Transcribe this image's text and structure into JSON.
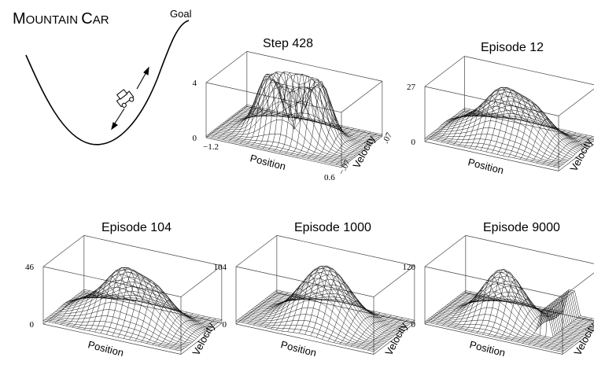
{
  "figure": {
    "title": "Mountain Car",
    "goal_label": "Goal"
  },
  "panels": [
    {
      "title": "Step 428",
      "x_label": "Position",
      "y_label": "Velocity",
      "z_ticks": [
        "0",
        "4"
      ],
      "x_ticks": [
        "−1.2",
        "0.6"
      ],
      "y_ticks": [
        "−.07",
        ".07"
      ],
      "shape": "ring"
    },
    {
      "title": "Episode 12",
      "x_label": "Position",
      "y_label": "Velocity",
      "z_ticks": [
        "0",
        "27"
      ],
      "shape": "broad"
    },
    {
      "title": "Episode 104",
      "x_label": "Position",
      "y_label": "Velocity",
      "z_ticks": [
        "0",
        "46"
      ],
      "shape": "broad"
    },
    {
      "title": "Episode 1000",
      "x_label": "Position",
      "y_label": "Velocity",
      "z_ticks": [
        "0",
        "104"
      ],
      "shape": "peak"
    },
    {
      "title": "Episode 9000",
      "x_label": "Position",
      "y_label": "Velocity",
      "z_ticks": [
        "0",
        "120"
      ],
      "shape": "sharp"
    }
  ]
}
